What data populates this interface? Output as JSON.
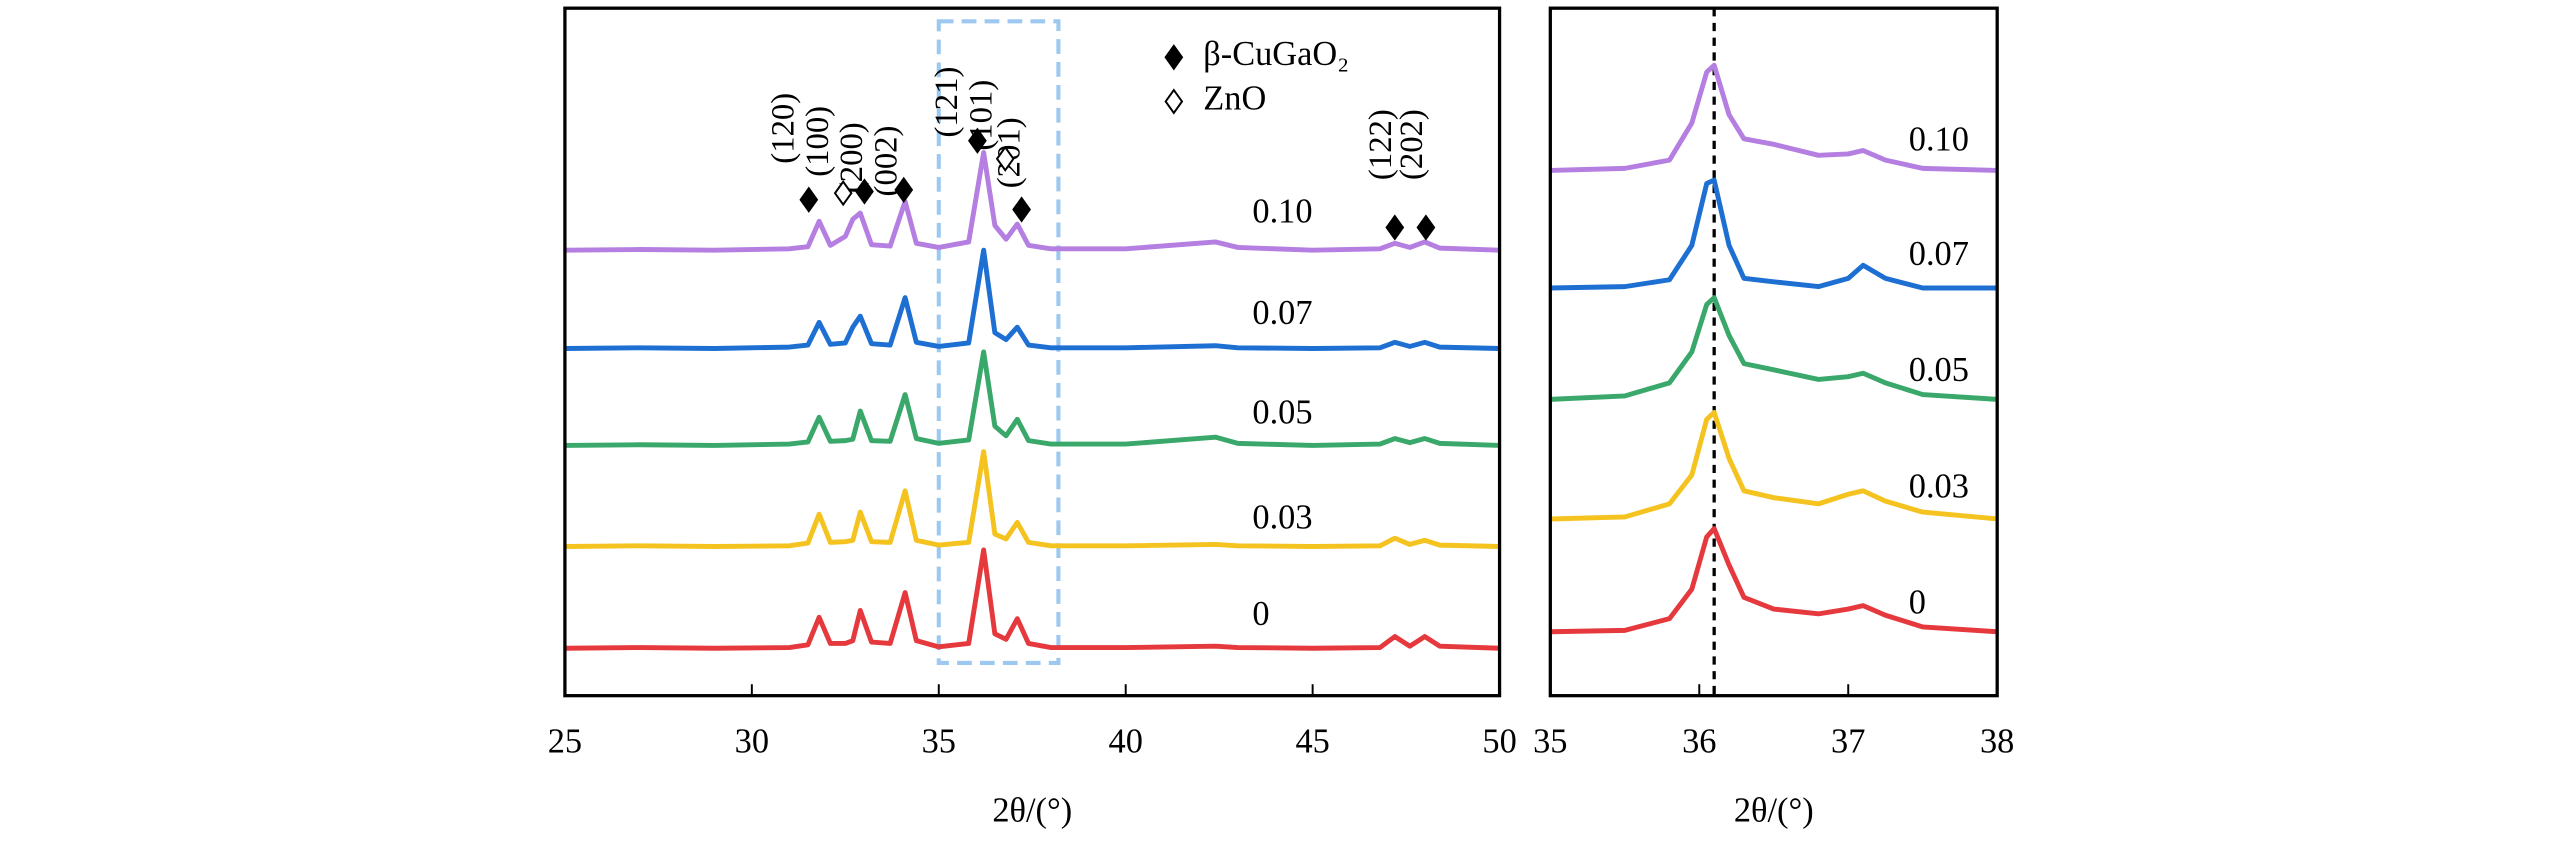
{
  "chart_data": [
    {
      "type": "line",
      "xlabel": "2θ/(°)",
      "xlim": [
        25,
        50
      ],
      "xticks": [
        25,
        30,
        35,
        40,
        45,
        50
      ],
      "ylim": [
        0,
        100
      ],
      "highlight_range": [
        35.0,
        38.2
      ],
      "highlight_color": "#9dc8ef",
      "x": [
        25,
        27,
        29,
        31,
        31.5,
        31.8,
        32.1,
        32.5,
        32.7,
        32.9,
        33.2,
        33.7,
        34.1,
        34.4,
        35,
        35.8,
        36.2,
        36.5,
        36.8,
        37.1,
        37.4,
        38,
        40,
        42.4,
        43,
        45,
        46.8,
        47.2,
        47.6,
        48.0,
        48.4,
        50
      ],
      "series": [
        {
          "name": "0",
          "color": "#e5393d",
          "values": [
            6.9,
            7.0,
            6.9,
            7.0,
            7.4,
            11.4,
            7.6,
            7.6,
            8.0,
            12.4,
            7.8,
            7.6,
            15.0,
            8.0,
            7.1,
            7.6,
            21.2,
            9.0,
            8.2,
            11.2,
            7.6,
            7.0,
            7.0,
            7.2,
            7.0,
            6.9,
            7.0,
            8.6,
            7.2,
            8.6,
            7.2,
            6.9
          ]
        },
        {
          "name": "0.03",
          "color": "#f5c320",
          "values": [
            21.7,
            21.8,
            21.7,
            21.8,
            22.2,
            26.4,
            22.3,
            22.4,
            22.6,
            26.7,
            22.4,
            22.3,
            29.8,
            22.6,
            21.9,
            22.3,
            35.5,
            23.5,
            22.8,
            25.2,
            22.3,
            21.8,
            21.8,
            22.0,
            21.8,
            21.7,
            21.8,
            22.9,
            22.0,
            22.6,
            21.9,
            21.7
          ]
        },
        {
          "name": "0.05",
          "color": "#3aa86a",
          "values": [
            36.4,
            36.5,
            36.4,
            36.6,
            36.9,
            40.5,
            37.0,
            37.1,
            37.3,
            41.4,
            37.1,
            37.0,
            43.8,
            37.4,
            36.7,
            37.2,
            50.0,
            39.2,
            37.8,
            40.2,
            37.1,
            36.6,
            36.6,
            37.6,
            36.7,
            36.4,
            36.6,
            37.4,
            36.8,
            37.4,
            36.7,
            36.4
          ]
        },
        {
          "name": "0.07",
          "color": "#1e6fd2",
          "values": [
            50.5,
            50.6,
            50.5,
            50.7,
            51.0,
            54.3,
            51.1,
            51.3,
            53.6,
            55.2,
            51.2,
            51.0,
            57.9,
            51.4,
            50.8,
            51.3,
            64.8,
            52.8,
            51.8,
            53.6,
            51.0,
            50.6,
            50.6,
            50.9,
            50.6,
            50.5,
            50.6,
            51.4,
            50.8,
            51.4,
            50.7,
            50.5
          ]
        },
        {
          "name": "0.10",
          "color": "#b47fe0",
          "values": [
            64.8,
            64.9,
            64.8,
            65.0,
            65.3,
            69.0,
            65.5,
            66.8,
            69.3,
            70.2,
            65.6,
            65.4,
            71.9,
            65.8,
            65.2,
            66.0,
            79.0,
            68.4,
            66.4,
            68.6,
            65.5,
            65.0,
            65.0,
            66.0,
            65.2,
            64.8,
            65.0,
            65.8,
            65.2,
            66.0,
            65.1,
            64.8
          ]
        }
      ],
      "peak_labels": [
        "(120)",
        "(100)",
        "(200)",
        "(002)",
        "(121)",
        "(101)",
        "(201)",
        "(122)",
        "(202)"
      ],
      "legend": [
        "β-CuGaO₂",
        "ZnO"
      ]
    },
    {
      "type": "line",
      "xlabel": "2θ/(°)",
      "xlim": [
        35,
        38
      ],
      "xticks": [
        35,
        36,
        37,
        38
      ],
      "ylim": [
        0,
        100
      ],
      "reference_x": 36.1,
      "x": [
        35,
        35.5,
        35.8,
        35.95,
        36.05,
        36.1,
        36.2,
        36.3,
        36.5,
        36.8,
        37.0,
        37.1,
        37.25,
        37.5,
        38
      ],
      "series": [
        {
          "name": "0",
          "color": "#e5393d",
          "values": [
            9.3,
            9.5,
            11.2,
            15.5,
            23.1,
            24.3,
            19.0,
            14.3,
            12.6,
            11.9,
            12.6,
            13.1,
            11.7,
            10.0,
            9.3
          ]
        },
        {
          "name": "0.03",
          "color": "#f5c320",
          "values": [
            25.7,
            26.0,
            27.9,
            32.1,
            40.2,
            41.2,
            34.5,
            29.8,
            28.8,
            27.9,
            29.3,
            29.8,
            28.3,
            26.7,
            25.7
          ]
        },
        {
          "name": "0.05",
          "color": "#3aa86a",
          "values": [
            43.1,
            43.6,
            45.5,
            50.0,
            56.9,
            57.9,
            52.4,
            48.3,
            47.4,
            46.0,
            46.4,
            46.9,
            45.5,
            43.8,
            43.1
          ]
        },
        {
          "name": "0.07",
          "color": "#1e6fd2",
          "values": [
            59.3,
            59.5,
            60.5,
            65.5,
            74.5,
            75.0,
            65.5,
            60.7,
            60.2,
            59.5,
            60.7,
            62.6,
            60.7,
            59.3,
            59.3
          ]
        },
        {
          "name": "0.10",
          "color": "#b47fe0",
          "values": [
            76.4,
            76.7,
            77.9,
            83.3,
            90.7,
            91.7,
            84.5,
            81.0,
            80.2,
            78.6,
            78.8,
            79.3,
            77.9,
            76.7,
            76.4
          ]
        }
      ]
    }
  ]
}
